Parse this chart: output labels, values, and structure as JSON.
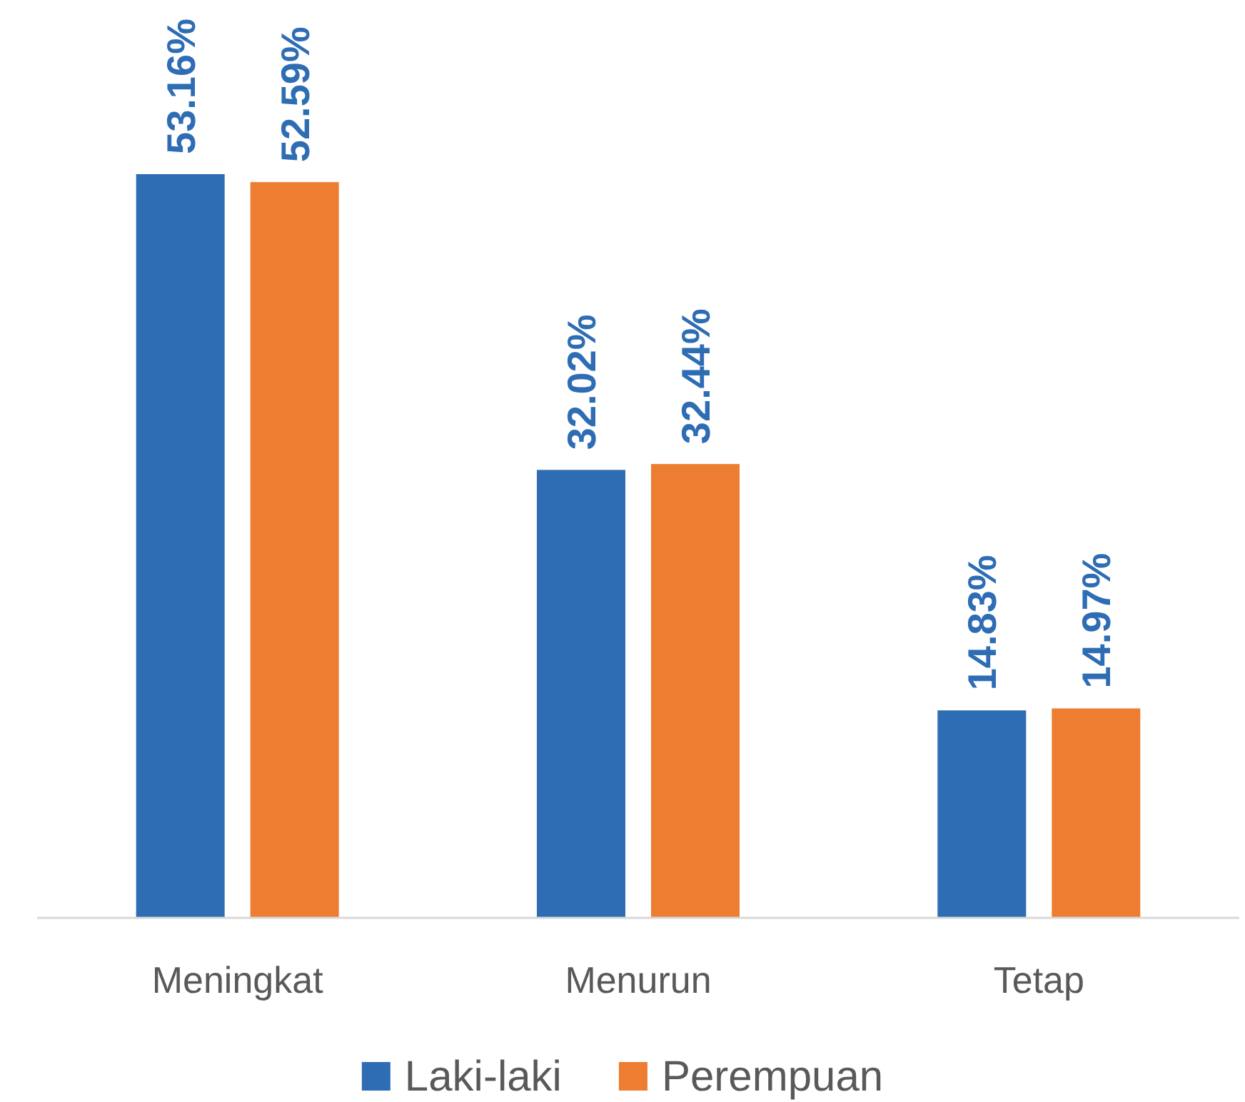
{
  "chart_data": {
    "type": "bar",
    "categories": [
      "Meningkat",
      "Menurun",
      "Tetap"
    ],
    "series": [
      {
        "name": "Laki-laki",
        "color": "#2e6db4",
        "values": [
          53.16,
          32.02,
          14.83
        ],
        "value_labels": [
          "53.16%",
          "32.02%",
          "14.83%"
        ]
      },
      {
        "name": "Perempuan",
        "color": "#ed7d31",
        "values": [
          52.59,
          32.44,
          14.97
        ],
        "value_labels": [
          "52.59%",
          "32.44%",
          "14.97%"
        ]
      }
    ],
    "legend": "bottom"
  }
}
